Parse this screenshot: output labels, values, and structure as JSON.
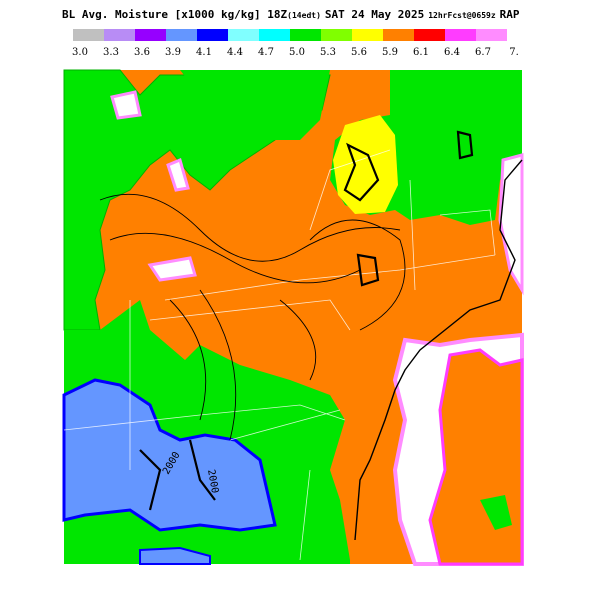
{
  "header": {
    "title": "BL Avg. Moisture [x1000 kg/kg] 18Z",
    "local_time": "(14edt)",
    "date": "SAT 24 May 2025",
    "forecast": "12hrFcst@0659z",
    "model": "RAP"
  },
  "legend": {
    "labels": [
      "3.0",
      "3.3",
      "3.6",
      "3.9",
      "4.1",
      "4.4",
      "4.7",
      "5.0",
      "5.3",
      "5.6",
      "5.9",
      "6.1",
      "6.4",
      "6.7",
      "7."
    ],
    "colors": [
      "#c0c0c0",
      "#b88cf5",
      "#9600ff",
      "#6496ff",
      "#0000ff",
      "#80ffff",
      "#00ffff",
      "#00e600",
      "#80ff00",
      "#ffff00",
      "#ff8000",
      "#ff0000",
      "#ff3cff",
      "#ff8cff"
    ]
  },
  "contour_labels": [
    "2000",
    "2000"
  ]
}
